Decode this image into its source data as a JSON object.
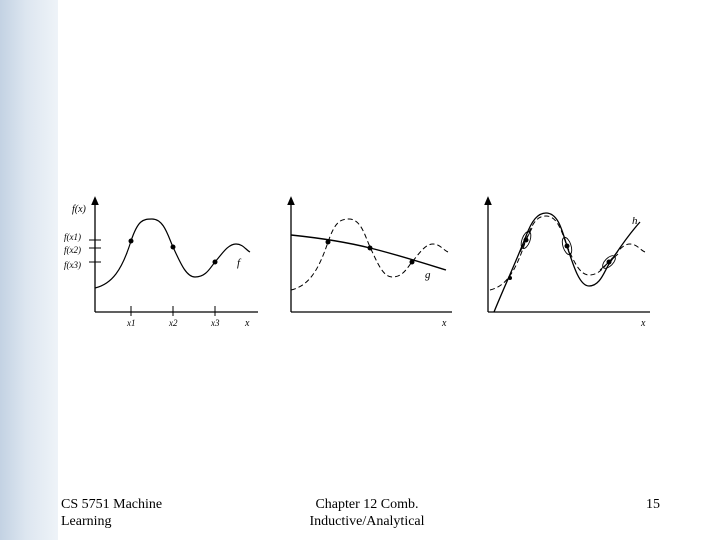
{
  "footer": {
    "course_line1": "CS 5751 Machine",
    "course_line2": "Learning",
    "chapter_line1": "Chapter 12  Comb.",
    "chapter_line2": "Inductive/Analytical",
    "page_number": "15"
  },
  "panel1": {
    "y_axis_label": "f(x)",
    "y_tick_labels": [
      "f(x1)",
      "f(x2)",
      "f(x3)"
    ],
    "x_tick_labels": [
      "x1",
      "x2",
      "x3"
    ],
    "x_axis_label": "x",
    "curve_label": "f"
  },
  "panel2": {
    "x_axis_label": "x",
    "curve_label": "g"
  },
  "panel3": {
    "x_axis_label": "x",
    "curve_label": "h"
  },
  "colors": {
    "stroke": "#000000",
    "edge": "#c9d6e6"
  }
}
